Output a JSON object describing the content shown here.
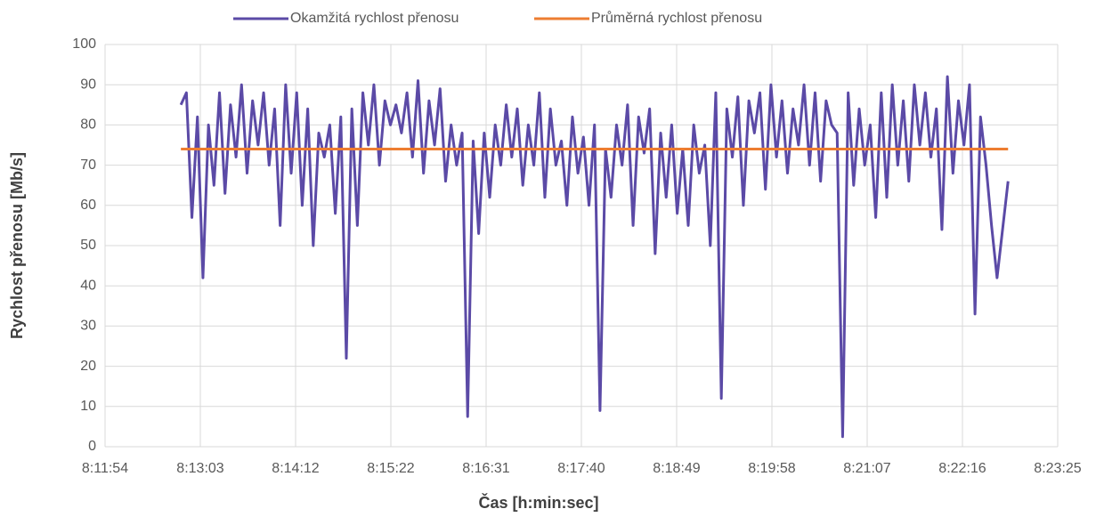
{
  "chart_data": {
    "type": "line",
    "xlabel": "Čas [h:min:sec]",
    "ylabel": "Rychlost přenosu [Mb/s]",
    "xlim": [
      29514,
      30205
    ],
    "xticks": [
      {
        "value": 29514,
        "label": "8:11:54"
      },
      {
        "value": 29583.1,
        "label": "8:13:03"
      },
      {
        "value": 29652.2,
        "label": "8:14:12"
      },
      {
        "value": 29721.3,
        "label": "8:15:22"
      },
      {
        "value": 29790.4,
        "label": "8:16:31"
      },
      {
        "value": 29859.5,
        "label": "8:17:40"
      },
      {
        "value": 29928.6,
        "label": "8:18:49"
      },
      {
        "value": 29997.7,
        "label": "8:19:58"
      },
      {
        "value": 30066.8,
        "label": "8:21:07"
      },
      {
        "value": 30135.9,
        "label": "8:22:16"
      },
      {
        "value": 30205,
        "label": "8:23:25"
      }
    ],
    "ylim": [
      0,
      100
    ],
    "yticks": [
      0,
      10,
      20,
      30,
      40,
      50,
      60,
      70,
      80,
      90,
      100
    ],
    "grid": true,
    "legend": "top",
    "series": [
      {
        "name": "Okamžitá rychlost přenosu",
        "color": "#5b4aa6",
        "x": [
          29569,
          29573,
          29577,
          29581,
          29585,
          29589,
          29593,
          29597,
          29601,
          29605,
          29609,
          29613,
          29617,
          29621,
          29625,
          29629,
          29633,
          29637,
          29641,
          29645,
          29649,
          29653,
          29657,
          29661,
          29665,
          29669,
          29673,
          29677,
          29681,
          29685,
          29689,
          29693,
          29697,
          29701,
          29705,
          29709,
          29713,
          29717,
          29721,
          29725,
          29729,
          29733,
          29737,
          29741,
          29745,
          29749,
          29753,
          29757,
          29761,
          29765,
          29769,
          29773,
          29777,
          29781,
          29785,
          29789,
          29793,
          29797,
          29801,
          29805,
          29809,
          29813,
          29817,
          29821,
          29825,
          29829,
          29833,
          29837,
          29841,
          29845,
          29849,
          29853,
          29857,
          29861,
          29865,
          29869,
          29873,
          29877,
          29881,
          29885,
          29889,
          29893,
          29897,
          29901,
          29905,
          29909,
          29913,
          29917,
          29921,
          29925,
          29929,
          29933,
          29937,
          29941,
          29945,
          29949,
          29953,
          29957,
          29961,
          29965,
          29969,
          29973,
          29977,
          29981,
          29985,
          29989,
          29993,
          29997,
          30001,
          30005,
          30009,
          30013,
          30017,
          30021,
          30025,
          30029,
          30033,
          30037,
          30041,
          30045,
          30049,
          30053,
          30057,
          30061,
          30065,
          30069,
          30073,
          30077,
          30081,
          30085,
          30089,
          30093,
          30097,
          30101,
          30105,
          30109,
          30113,
          30117,
          30121,
          30125,
          30129,
          30133,
          30137,
          30141,
          30145,
          30149,
          30153,
          30157,
          30161,
          30165,
          30169
        ],
        "values": [
          85,
          88,
          57,
          82,
          42,
          80,
          65,
          88,
          63,
          85,
          72,
          90,
          68,
          86,
          75,
          88,
          70,
          84,
          55,
          90,
          68,
          88,
          60,
          84,
          50,
          78,
          72,
          80,
          58,
          82,
          22,
          84,
          55,
          88,
          75,
          90,
          70,
          86,
          80,
          85,
          78,
          88,
          72,
          91,
          68,
          86,
          75,
          89,
          66,
          80,
          70,
          78,
          7.5,
          76,
          53,
          78,
          62,
          80,
          70,
          85,
          72,
          84,
          65,
          80,
          70,
          88,
          62,
          84,
          70,
          76,
          60,
          82,
          68,
          77,
          60,
          80,
          9,
          74,
          62,
          80,
          70,
          85,
          55,
          82,
          73,
          84,
          48,
          78,
          62,
          80,
          58,
          74,
          55,
          80,
          68,
          75,
          50,
          88,
          12,
          84,
          72,
          87,
          60,
          86,
          78,
          88,
          64,
          90,
          72,
          86,
          68,
          84,
          75,
          90,
          70,
          88,
          66,
          86,
          80,
          78,
          2.5,
          88,
          65,
          84,
          70,
          80,
          57,
          88,
          62,
          90,
          70,
          86,
          66,
          90,
          75,
          88,
          72,
          84,
          54,
          92,
          68,
          86,
          75,
          90,
          33,
          82,
          70,
          55,
          42,
          54,
          66
        ]
      },
      {
        "name": "Průměrná rychlost přenosu",
        "color": "#ed7d31",
        "x": [
          29569,
          30169
        ],
        "values": [
          74,
          74
        ]
      }
    ]
  }
}
